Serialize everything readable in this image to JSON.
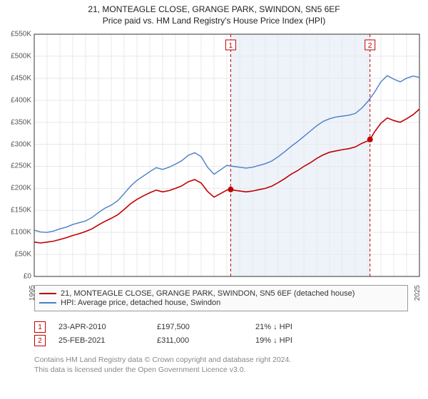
{
  "titles": {
    "main": "21, MONTEAGLE CLOSE, GRANGE PARK, SWINDON, SN5 6EF",
    "sub": "Price paid vs. HM Land Registry's House Price Index (HPI)"
  },
  "chart": {
    "type": "line",
    "background_color": "#fcfcfc",
    "plot_bg_color": "#ffffff",
    "grid_color": "#e8e8e8",
    "axis_color": "#333333",
    "ylim": [
      0,
      550000
    ],
    "ytick_step": 50000,
    "ytick_prefix": "£",
    "ytick_suffix": "K",
    "ytick_divisor": 1000,
    "x_years": [
      1995,
      1996,
      1997,
      1998,
      1999,
      2000,
      2001,
      2002,
      2003,
      2004,
      2005,
      2006,
      2007,
      2008,
      2009,
      2010,
      2011,
      2012,
      2013,
      2014,
      2015,
      2016,
      2017,
      2018,
      2019,
      2020,
      2021,
      2022,
      2023,
      2024,
      2025
    ],
    "shaded_band": {
      "from_year": 2010.3,
      "to_year": 2021.15,
      "fill": "#eef3fa"
    },
    "series": [
      {
        "name": "hpi",
        "color": "#4a7ec8",
        "width": 1.4,
        "legend": "HPI: Average price, detached house, Swindon",
        "points": [
          [
            1995.0,
            105000
          ],
          [
            1995.5,
            101000
          ],
          [
            1996.0,
            100000
          ],
          [
            1996.5,
            103000
          ],
          [
            1997.0,
            108000
          ],
          [
            1997.5,
            112000
          ],
          [
            1998.0,
            118000
          ],
          [
            1998.5,
            122000
          ],
          [
            1999.0,
            126000
          ],
          [
            1999.5,
            134000
          ],
          [
            2000.0,
            145000
          ],
          [
            2000.5,
            155000
          ],
          [
            2001.0,
            162000
          ],
          [
            2001.5,
            172000
          ],
          [
            2002.0,
            188000
          ],
          [
            2002.5,
            205000
          ],
          [
            2003.0,
            218000
          ],
          [
            2003.5,
            228000
          ],
          [
            2004.0,
            238000
          ],
          [
            2004.5,
            247000
          ],
          [
            2005.0,
            243000
          ],
          [
            2005.5,
            248000
          ],
          [
            2006.0,
            255000
          ],
          [
            2006.5,
            263000
          ],
          [
            2007.0,
            275000
          ],
          [
            2007.5,
            281000
          ],
          [
            2008.0,
            272000
          ],
          [
            2008.5,
            248000
          ],
          [
            2009.0,
            232000
          ],
          [
            2009.5,
            242000
          ],
          [
            2010.0,
            252000
          ],
          [
            2010.5,
            250000
          ],
          [
            2011.0,
            248000
          ],
          [
            2011.5,
            246000
          ],
          [
            2012.0,
            248000
          ],
          [
            2012.5,
            252000
          ],
          [
            2013.0,
            256000
          ],
          [
            2013.5,
            262000
          ],
          [
            2014.0,
            272000
          ],
          [
            2014.5,
            283000
          ],
          [
            2015.0,
            295000
          ],
          [
            2015.5,
            306000
          ],
          [
            2016.0,
            318000
          ],
          [
            2016.5,
            330000
          ],
          [
            2017.0,
            342000
          ],
          [
            2017.5,
            352000
          ],
          [
            2018.0,
            358000
          ],
          [
            2018.5,
            362000
          ],
          [
            2019.0,
            364000
          ],
          [
            2019.5,
            366000
          ],
          [
            2020.0,
            370000
          ],
          [
            2020.5,
            382000
          ],
          [
            2021.0,
            398000
          ],
          [
            2021.5,
            418000
          ],
          [
            2022.0,
            442000
          ],
          [
            2022.5,
            456000
          ],
          [
            2023.0,
            448000
          ],
          [
            2023.5,
            442000
          ],
          [
            2024.0,
            450000
          ],
          [
            2024.5,
            455000
          ],
          [
            2025.0,
            452000
          ]
        ]
      },
      {
        "name": "price_paid",
        "color": "#c00000",
        "width": 1.6,
        "legend": "21, MONTEAGLE CLOSE, GRANGE PARK, SWINDON, SN5 6EF (detached house)",
        "points": [
          [
            1995.0,
            78000
          ],
          [
            1995.5,
            76000
          ],
          [
            1996.0,
            78000
          ],
          [
            1996.5,
            80000
          ],
          [
            1997.0,
            84000
          ],
          [
            1997.5,
            88000
          ],
          [
            1998.0,
            93000
          ],
          [
            1998.5,
            97000
          ],
          [
            1999.0,
            102000
          ],
          [
            1999.5,
            108000
          ],
          [
            2000.0,
            117000
          ],
          [
            2000.5,
            125000
          ],
          [
            2001.0,
            132000
          ],
          [
            2001.5,
            140000
          ],
          [
            2002.0,
            152000
          ],
          [
            2002.5,
            165000
          ],
          [
            2003.0,
            175000
          ],
          [
            2003.5,
            183000
          ],
          [
            2004.0,
            190000
          ],
          [
            2004.5,
            196000
          ],
          [
            2005.0,
            192000
          ],
          [
            2005.5,
            195000
          ],
          [
            2006.0,
            200000
          ],
          [
            2006.5,
            206000
          ],
          [
            2007.0,
            215000
          ],
          [
            2007.5,
            220000
          ],
          [
            2008.0,
            212000
          ],
          [
            2008.5,
            193000
          ],
          [
            2009.0,
            180000
          ],
          [
            2009.5,
            188000
          ],
          [
            2010.0,
            196000
          ],
          [
            2010.3,
            197500
          ],
          [
            2010.5,
            196000
          ],
          [
            2011.0,
            194000
          ],
          [
            2011.5,
            192000
          ],
          [
            2012.0,
            194000
          ],
          [
            2012.5,
            197000
          ],
          [
            2013.0,
            200000
          ],
          [
            2013.5,
            205000
          ],
          [
            2014.0,
            213000
          ],
          [
            2014.5,
            222000
          ],
          [
            2015.0,
            232000
          ],
          [
            2015.5,
            240000
          ],
          [
            2016.0,
            250000
          ],
          [
            2016.5,
            258000
          ],
          [
            2017.0,
            268000
          ],
          [
            2017.5,
            276000
          ],
          [
            2018.0,
            282000
          ],
          [
            2018.5,
            285000
          ],
          [
            2019.0,
            288000
          ],
          [
            2019.5,
            290000
          ],
          [
            2020.0,
            294000
          ],
          [
            2020.5,
            302000
          ],
          [
            2021.0,
            308000
          ],
          [
            2021.15,
            311000
          ],
          [
            2021.5,
            328000
          ],
          [
            2022.0,
            348000
          ],
          [
            2022.5,
            360000
          ],
          [
            2023.0,
            354000
          ],
          [
            2023.5,
            350000
          ],
          [
            2024.0,
            358000
          ],
          [
            2024.5,
            367000
          ],
          [
            2025.0,
            380000
          ]
        ]
      }
    ],
    "event_markers": [
      {
        "num": "1",
        "year": 2010.3,
        "y": 197500,
        "line_color": "#c00000",
        "dash": "4,3"
      },
      {
        "num": "2",
        "year": 2021.15,
        "y": 311000,
        "line_color": "#c00000",
        "dash": "4,3"
      }
    ]
  },
  "markers_table": [
    {
      "num": "1",
      "date": "23-APR-2010",
      "price": "£197,500",
      "delta": "21% ↓ HPI"
    },
    {
      "num": "2",
      "date": "25-FEB-2021",
      "price": "£311,000",
      "delta": "19% ↓ HPI"
    }
  ],
  "footer": {
    "line1": "Contains HM Land Registry data © Crown copyright and database right 2024.",
    "line2": "This data is licensed under the Open Government Licence v3.0."
  }
}
